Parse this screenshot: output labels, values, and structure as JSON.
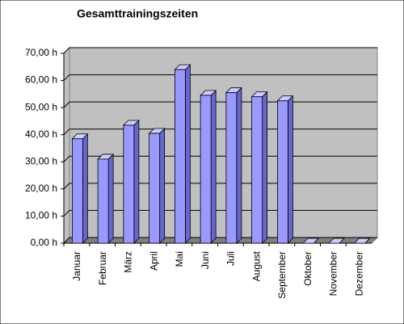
{
  "chart_data": {
    "type": "bar",
    "title": "Gesamttrainingszeiten",
    "categories": [
      "Januar",
      "Februar",
      "März",
      "April",
      "Mai",
      "Juni",
      "Juli",
      "August",
      "September",
      "Oktober",
      "November",
      "Dezember"
    ],
    "values": [
      38.5,
      31,
      43.5,
      40.5,
      64,
      54.5,
      55.5,
      54,
      52.5,
      0,
      0,
      0
    ],
    "color": "#9999ff",
    "ylim": [
      0,
      70
    ],
    "yticks": [
      {
        "value": 0,
        "label": "0,00 h"
      },
      {
        "value": 10,
        "label": "10,00 h"
      },
      {
        "value": 20,
        "label": "20,00 h"
      },
      {
        "value": 30,
        "label": "30,00 h"
      },
      {
        "value": 40,
        "label": "40,00 h"
      },
      {
        "value": 50,
        "label": "50,00 h"
      },
      {
        "value": 60,
        "label": "60,00 h"
      },
      {
        "value": 70,
        "label": "70,00 h"
      }
    ],
    "grid": true
  }
}
